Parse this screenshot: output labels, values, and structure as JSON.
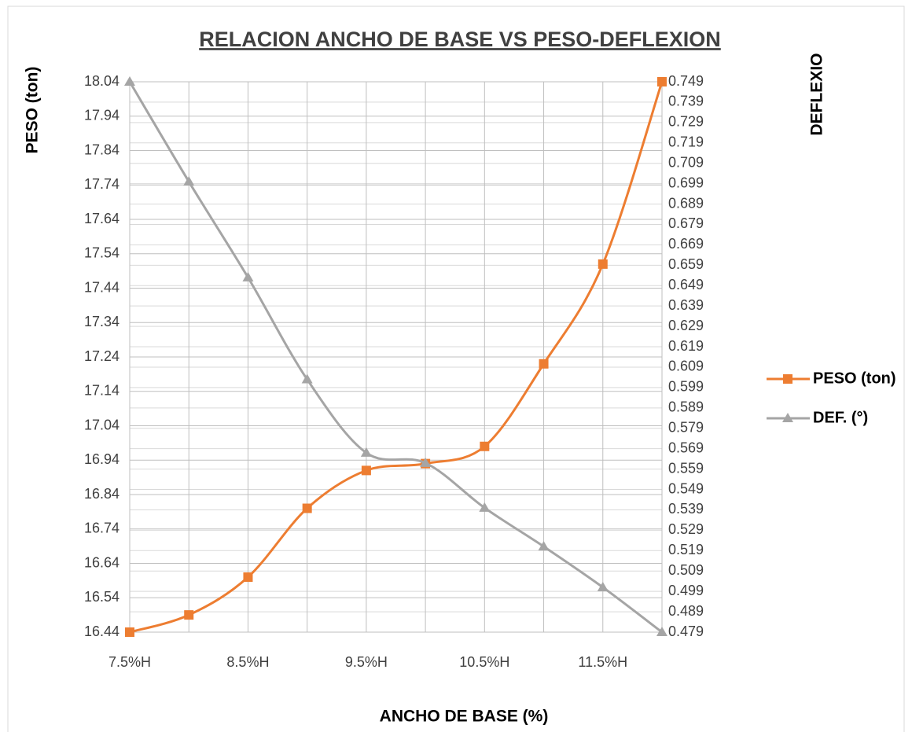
{
  "chart_data": {
    "type": "line",
    "title": "RELACION ANCHO DE BASE VS PESO-DEFLEXION",
    "x_label": "ANCHO DE BASE (%)",
    "y_label": "PESO (ton)",
    "y2_label": "DEFLEXIO",
    "categories": [
      "7.5%H",
      null,
      "8.5%H",
      null,
      "9.5%H",
      null,
      "10.5%H",
      null,
      "11.5%H",
      null
    ],
    "series": [
      {
        "name": "PESO (ton)",
        "color": "#ED7D31",
        "marker": "square",
        "values": [
          16.44,
          16.49,
          16.6,
          16.8,
          16.91,
          16.93,
          16.98,
          17.22,
          17.51,
          18.04
        ]
      },
      {
        "name": "DEF. (°)",
        "color": "#A5A5A5",
        "marker": "triangle",
        "axis": "y2",
        "values": [
          0.749,
          0.7,
          0.653,
          0.603,
          0.567,
          0.562,
          0.54,
          0.521,
          0.501,
          0.479
        ]
      }
    ],
    "ylim": [
      16.44,
      18.04
    ],
    "yticks": [
      16.44,
      16.54,
      16.64,
      16.74,
      16.84,
      16.94,
      17.04,
      17.14,
      17.24,
      17.34,
      17.44,
      17.54,
      17.64,
      17.74,
      17.84,
      17.94,
      18.04
    ],
    "y2lim": [
      0.479,
      0.749
    ],
    "y2ticks": [
      0.479,
      0.489,
      0.499,
      0.509,
      0.519,
      0.529,
      0.539,
      0.549,
      0.559,
      0.569,
      0.579,
      0.589,
      0.599,
      0.609,
      0.619,
      0.629,
      0.639,
      0.649,
      0.659,
      0.669,
      0.679,
      0.689,
      0.699,
      0.709,
      0.719,
      0.729,
      0.739,
      0.749
    ],
    "grid": true,
    "legend": "right"
  }
}
